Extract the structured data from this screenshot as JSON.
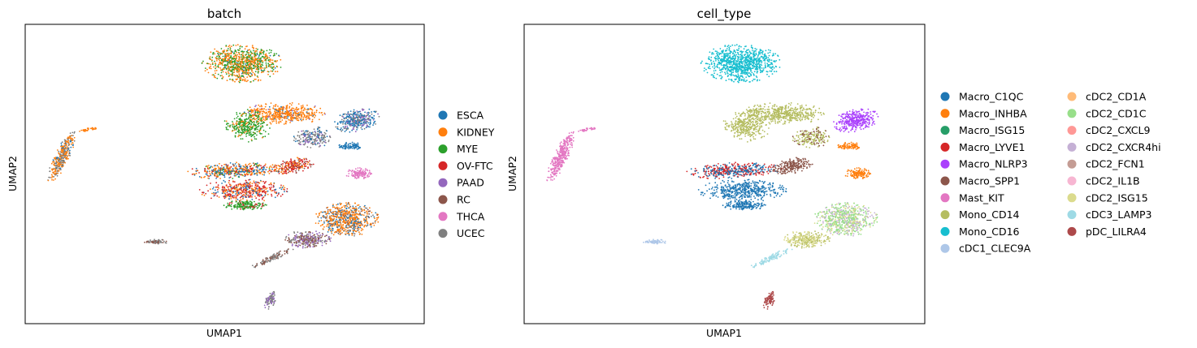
{
  "chart_data": [
    {
      "type": "scatter",
      "title": "batch",
      "xlabel": "UMAP1",
      "ylabel": "UMAP2",
      "ticks": "none",
      "legend_position": "right",
      "legend_columns": 1,
      "categories": [
        {
          "name": "ESCA",
          "color": "#1f77b4"
        },
        {
          "name": "KIDNEY",
          "color": "#ff7f0e"
        },
        {
          "name": "MYE",
          "color": "#2ca02c"
        },
        {
          "name": "OV-FTC",
          "color": "#d62728"
        },
        {
          "name": "PAAD",
          "color": "#9467bd"
        },
        {
          "name": "RC",
          "color": "#8c564b"
        },
        {
          "name": "THCA",
          "color": "#e377c2"
        },
        {
          "name": "UCEC",
          "color": "#7f7f7f"
        }
      ]
    },
    {
      "type": "scatter",
      "title": "cell_type",
      "xlabel": "UMAP1",
      "ylabel": "UMAP2",
      "ticks": "none",
      "legend_position": "right",
      "legend_columns": 2,
      "categories": [
        {
          "name": "Macro_C1QC",
          "color": "#1f77b4"
        },
        {
          "name": "Macro_INHBA",
          "color": "#ff7f0e"
        },
        {
          "name": "Macro_ISG15",
          "color": "#279e68"
        },
        {
          "name": "Macro_LYVE1",
          "color": "#d62728"
        },
        {
          "name": "Macro_NLRP3",
          "color": "#aa40fc"
        },
        {
          "name": "Macro_SPP1",
          "color": "#8c564b"
        },
        {
          "name": "Mast_KIT",
          "color": "#e377c2"
        },
        {
          "name": "Mono_CD14",
          "color": "#b5bd61"
        },
        {
          "name": "Mono_CD16",
          "color": "#17becf"
        },
        {
          "name": "cDC1_CLEC9A",
          "color": "#aec7e8"
        },
        {
          "name": "cDC2_CD1A",
          "color": "#ffbb78"
        },
        {
          "name": "cDC2_CD1C",
          "color": "#98df8a"
        },
        {
          "name": "cDC2_CXCL9",
          "color": "#ff9896"
        },
        {
          "name": "cDC2_CXCR4hi",
          "color": "#c5b0d5"
        },
        {
          "name": "cDC2_FCN1",
          "color": "#c49c94"
        },
        {
          "name": "cDC2_IL1B",
          "color": "#f7b6d2"
        },
        {
          "name": "cDC2_ISG15",
          "color": "#dbdb8d"
        },
        {
          "name": "cDC3_LAMP3",
          "color": "#9edae5"
        },
        {
          "name": "pDC_LILRA4",
          "color": "#ad494a"
        }
      ]
    }
  ]
}
